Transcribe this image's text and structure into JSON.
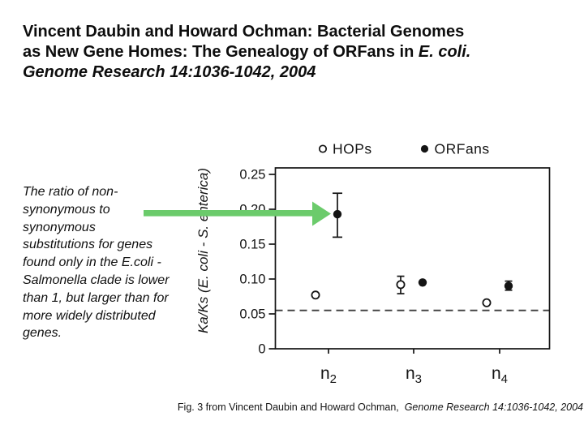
{
  "slide": {
    "title": {
      "line1": "Vincent Daubin and Howard Ochman: Bacterial Genomes",
      "line2_text": "as New Gene Homes: The Genealogy of ORFans in ",
      "line2_italic": "E. coli.",
      "line3_italic": "Genome Research 14:1036-1042, 2004"
    },
    "body_text": "The ratio of non-\nsynonymous to\nsynonymous\nsubstitutions for genes\nfound only in the E.coli -\nSalmonella clade is lower\nthan 1, but larger than for\nmore widely distributed\ngenes.",
    "caption": {
      "text_regular": "Fig. 3 from Vincent Daubin and Howard Ochman,  ",
      "text_italic": "Genome Research 14:1036-1042, 2004"
    },
    "arrow_color": "#6BCB6B"
  },
  "chart_data": {
    "type": "scatter",
    "title": "",
    "xlabel": "",
    "ylabel": "Ka/Ks (E. coli - S. enterica)",
    "categories": [
      "n2",
      "n3",
      "n4"
    ],
    "series": [
      {
        "name": "HOPs",
        "marker": "open",
        "points": [
          {
            "y": 0.077
          },
          {
            "y": 0.092,
            "lo": 0.079,
            "hi": 0.104
          },
          {
            "y": 0.066
          }
        ]
      },
      {
        "name": "ORFans",
        "marker": "filled",
        "points": [
          {
            "y": 0.193,
            "lo": 0.16,
            "hi": 0.223
          },
          {
            "y": 0.095
          },
          {
            "y": 0.09,
            "lo": 0.084,
            "hi": 0.097
          }
        ]
      }
    ],
    "y_ticks": [
      {
        "v": 0.0,
        "label": "0"
      },
      {
        "v": 0.05,
        "label": "0.05"
      },
      {
        "v": 0.1,
        "label": "0.10"
      },
      {
        "v": 0.15,
        "label": "0.15"
      },
      {
        "v": 0.2,
        "label": "0.20"
      },
      {
        "v": 0.25,
        "label": "0.25"
      }
    ],
    "ylim": [
      0,
      0.26
    ],
    "dashed_line_y": 0.055,
    "grid": false,
    "legend_position": "top"
  }
}
